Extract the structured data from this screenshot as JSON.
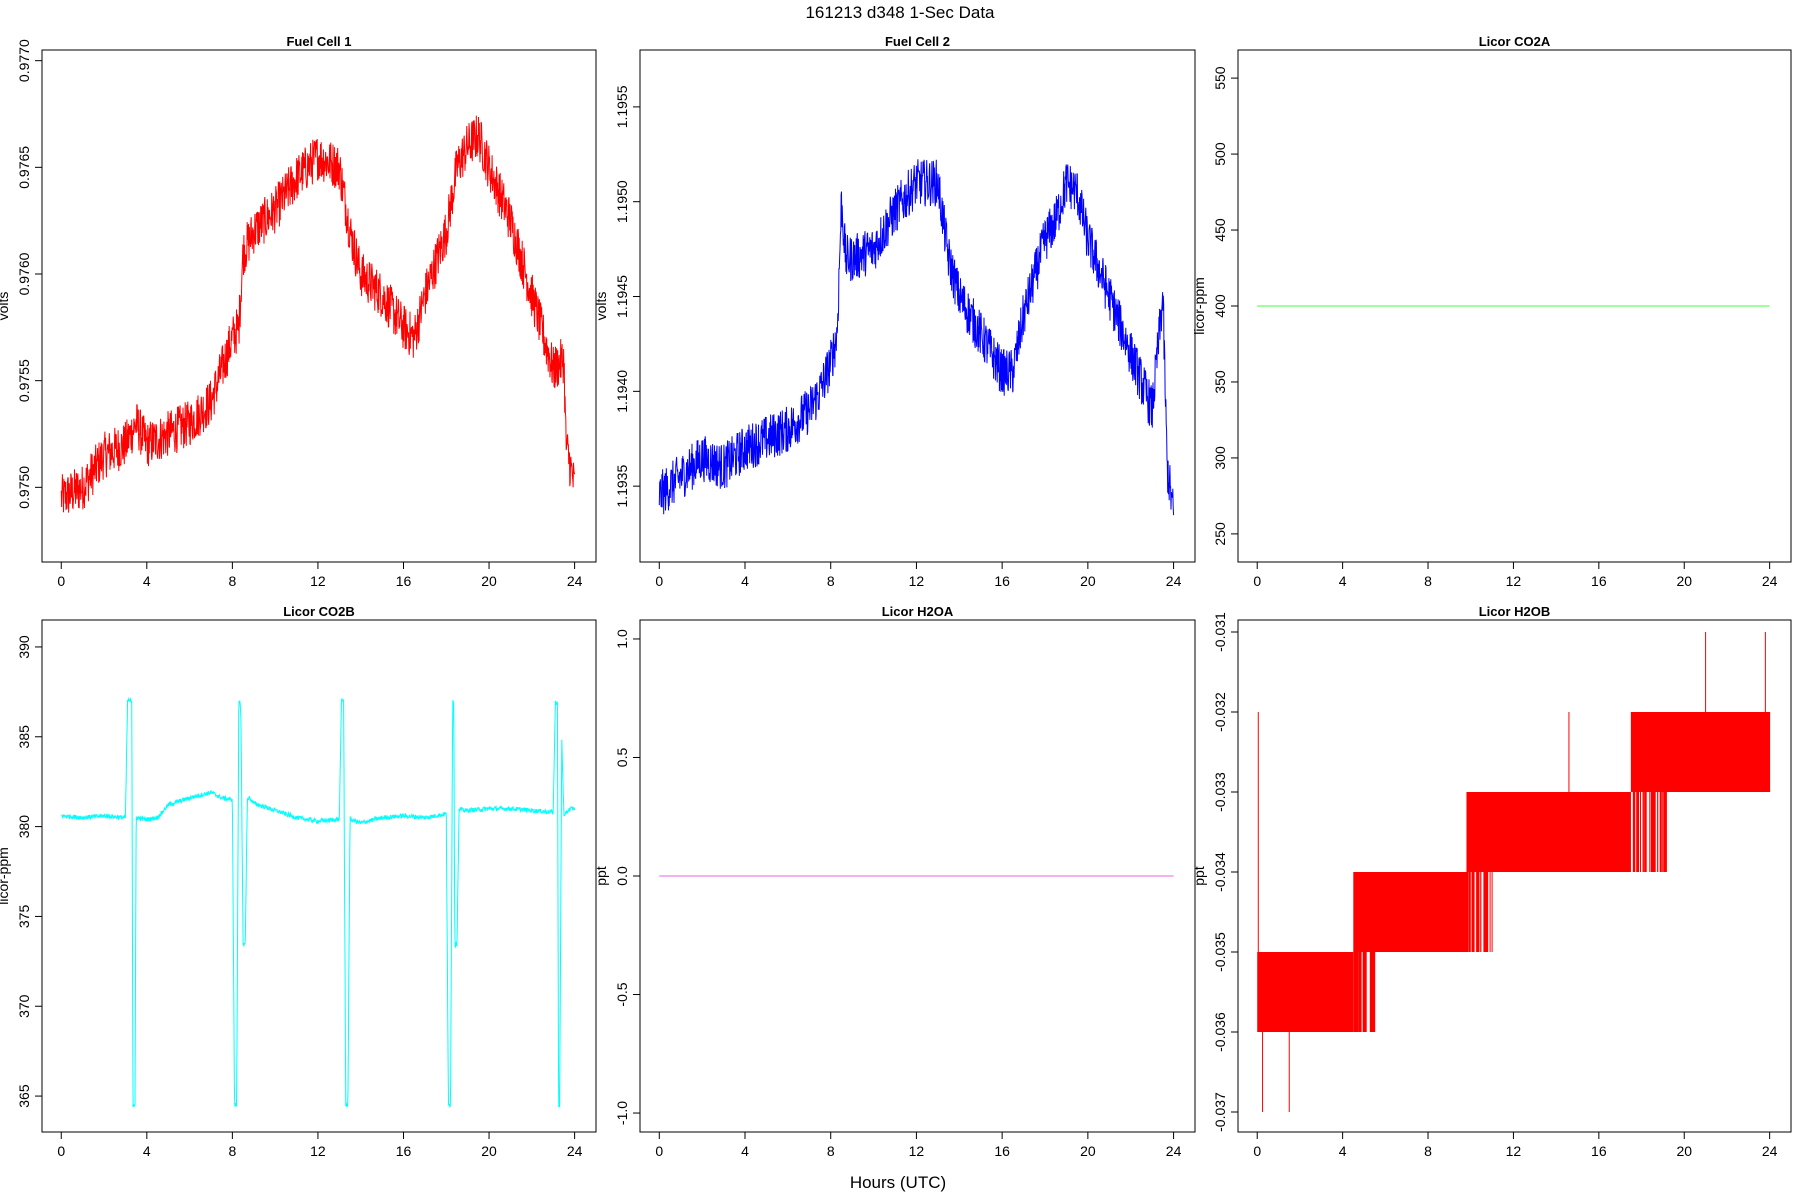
{
  "figure": {
    "title": "161213   d348   1-Sec Data",
    "xlabel": "Hours (UTC)"
  },
  "chart_data": [
    {
      "id": "fuel-cell-1",
      "type": "line",
      "title": "Fuel Cell 1",
      "ylabel": "volts",
      "color": "#ff0000",
      "xlim": [
        -0.9,
        25.0
      ],
      "ylim": [
        0.97465,
        0.97705
      ],
      "xticks": [
        0,
        4,
        8,
        12,
        16,
        20,
        24
      ],
      "yticks": [
        0.975,
        0.9755,
        0.976,
        0.9765,
        0.977
      ],
      "ytick_labels": [
        "0.9750",
        "0.9755",
        "0.9760",
        "0.9765",
        "0.9770"
      ],
      "noise": 0.00022,
      "series": [
        {
          "x": [
            0,
            1,
            2,
            3,
            3.5,
            4,
            5,
            6,
            7,
            7.5,
            8,
            8.3,
            8.5,
            9,
            10,
            11,
            12,
            13,
            13.5,
            14,
            15,
            16,
            16.5,
            17,
            18,
            18.5,
            19,
            19.5,
            20,
            21,
            22,
            23,
            23.5,
            23.6,
            24
          ],
          "y": [
            0.97495,
            0.975,
            0.97515,
            0.9752,
            0.9753,
            0.9752,
            0.97525,
            0.9753,
            0.9754,
            0.97555,
            0.9757,
            0.97575,
            0.9761,
            0.9762,
            0.9763,
            0.97645,
            0.97655,
            0.9765,
            0.9762,
            0.976,
            0.9759,
            0.97575,
            0.9757,
            0.9759,
            0.9762,
            0.9765,
            0.9766,
            0.97665,
            0.9765,
            0.97625,
            0.9759,
            0.97555,
            0.9756,
            0.9752,
            0.975
          ]
        }
      ]
    },
    {
      "id": "fuel-cell-2",
      "type": "line",
      "title": "Fuel Cell 2",
      "ylabel": "volts",
      "color": "#0000ff",
      "xlim": [
        -0.9,
        25.0
      ],
      "ylim": [
        1.1931,
        1.1958
      ],
      "xticks": [
        0,
        4,
        8,
        12,
        16,
        20,
        24
      ],
      "yticks": [
        1.1935,
        1.194,
        1.1945,
        1.195,
        1.1955
      ],
      "ytick_labels": [
        "1.1935",
        "1.1940",
        "1.1945",
        "1.1950",
        "1.1955"
      ],
      "noise": 0.00025,
      "series": [
        {
          "x": [
            0,
            1,
            2,
            3,
            3.5,
            4,
            5,
            6,
            7,
            7.5,
            8,
            8.3,
            8.5,
            8.7,
            9,
            10,
            11,
            12,
            13,
            13.5,
            14,
            15,
            16,
            16.5,
            17,
            18,
            18.5,
            19,
            19.5,
            20,
            21,
            22,
            23,
            23.5,
            23.7,
            24
          ],
          "y": [
            1.19345,
            1.19355,
            1.19365,
            1.1936,
            1.19365,
            1.1937,
            1.19375,
            1.1938,
            1.1939,
            1.194,
            1.19415,
            1.1943,
            1.195,
            1.1947,
            1.1947,
            1.19475,
            1.19495,
            1.1951,
            1.1951,
            1.1947,
            1.1945,
            1.1943,
            1.1941,
            1.1941,
            1.1944,
            1.1948,
            1.1949,
            1.1951,
            1.19505,
            1.1948,
            1.1945,
            1.1942,
            1.1939,
            1.1945,
            1.1936,
            1.19335
          ]
        }
      ]
    },
    {
      "id": "licor-co2a",
      "type": "line",
      "title": "Licor CO2A",
      "ylabel": "licor-ppm",
      "color": "#66ff66",
      "xlim": [
        -0.9,
        25.0
      ],
      "ylim": [
        231.5,
        568.5
      ],
      "xticks": [
        0,
        4,
        8,
        12,
        16,
        20,
        24
      ],
      "yticks": [
        250,
        300,
        350,
        400,
        450,
        500,
        550
      ],
      "ytick_labels": [
        "250",
        "300",
        "350",
        "400",
        "450",
        "500",
        "550"
      ],
      "noise": 0,
      "series": [
        {
          "x": [
            0,
            24
          ],
          "y": [
            400,
            400
          ]
        }
      ]
    },
    {
      "id": "licor-co2b",
      "type": "line",
      "title": "Licor CO2B",
      "ylabel": "licor-ppm",
      "color": "#00ffff",
      "xlim": [
        -0.9,
        25.0
      ],
      "ylim": [
        363.0,
        391.5
      ],
      "xticks": [
        0,
        4,
        8,
        12,
        16,
        20,
        24
      ],
      "yticks": [
        365,
        370,
        375,
        380,
        385,
        390
      ],
      "ytick_labels": [
        "365",
        "370",
        "375",
        "380",
        "385",
        "390"
      ],
      "noise": 0.25,
      "series": [
        {
          "x": [
            0,
            1,
            2,
            3,
            3.1,
            3.2,
            3.3,
            3.35,
            3.4,
            3.45,
            3.5,
            4,
            4.5,
            5,
            6,
            7,
            7.5,
            8,
            8.1,
            8.15,
            8.2,
            8.3,
            8.35,
            8.4,
            8.5,
            8.6,
            8.7,
            8.75,
            8.8,
            9,
            10,
            11,
            12,
            13,
            13.1,
            13.2,
            13.3,
            13.35,
            13.4,
            13.5,
            14,
            15,
            16,
            17,
            18,
            18.1,
            18.2,
            18.3,
            18.35,
            18.4,
            18.5,
            18.6,
            18.7,
            18.75,
            19,
            20,
            21,
            22,
            23,
            23.1,
            23.2,
            23.25,
            23.3,
            23.4,
            23.5,
            23.55,
            23.6,
            23.7,
            23.8,
            24
          ],
          "y": [
            380.6,
            380.5,
            380.6,
            380.5,
            387.0,
            387.0,
            387.0,
            364.5,
            364.5,
            364.5,
            380.5,
            380.4,
            380.5,
            381.2,
            381.6,
            381.9,
            381.6,
            381.5,
            364.5,
            364.5,
            364.5,
            387.0,
            387.0,
            386.0,
            373.5,
            373.4,
            381.5,
            381.6,
            381.6,
            381.3,
            380.9,
            380.5,
            380.3,
            380.4,
            387.0,
            387.0,
            364.5,
            364.5,
            364.5,
            380.4,
            380.2,
            380.5,
            380.6,
            380.5,
            380.7,
            364.5,
            364.5,
            387.0,
            387.0,
            373.4,
            373.5,
            380.9,
            381.0,
            380.9,
            380.9,
            381.0,
            381.0,
            380.9,
            380.8,
            386.9,
            386.9,
            364.4,
            364.4,
            384.9,
            380.6,
            380.5,
            380.8,
            380.9,
            381.0,
            381.0
          ]
        }
      ]
    },
    {
      "id": "licor-h2oa",
      "type": "line",
      "title": "Licor H2OA",
      "ylabel": "ppt",
      "color": "#ee82ee",
      "xlim": [
        -0.9,
        25.0
      ],
      "ylim": [
        -1.08,
        1.08
      ],
      "xticks": [
        0,
        4,
        8,
        12,
        16,
        20,
        24
      ],
      "yticks": [
        -1.0,
        -0.5,
        0.0,
        0.5,
        1.0
      ],
      "ytick_labels": [
        "-1.0",
        "-0.5",
        "0.0",
        "0.5",
        "1.0"
      ],
      "noise": 0,
      "series": [
        {
          "x": [
            0,
            24
          ],
          "y": [
            0,
            0
          ]
        }
      ]
    },
    {
      "id": "licor-h2ob",
      "type": "line",
      "title": "Licor H2OB",
      "ylabel": "ppt",
      "color": "#ff0000",
      "xlim": [
        -0.9,
        25.0
      ],
      "ylim": [
        -0.03725,
        -0.03085
      ],
      "xticks": [
        0,
        4,
        8,
        12,
        16,
        20,
        24
      ],
      "yticks": [
        -0.037,
        -0.036,
        -0.035,
        -0.034,
        -0.033,
        -0.032,
        -0.031
      ],
      "ytick_labels": [
        "-0.037",
        "-0.036",
        "-0.035",
        "-0.034",
        "-0.033",
        "-0.032",
        "-0.031"
      ],
      "noise": 0,
      "step_bands": [
        {
          "x": [
            0,
            4.5
          ],
          "low": -0.036,
          "high": -0.035
        },
        {
          "x": [
            4.5,
            9.8
          ],
          "low": -0.035,
          "high": -0.034
        },
        {
          "x": [
            9.8,
            17.5
          ],
          "low": -0.034,
          "high": -0.033
        },
        {
          "x": [
            17.5,
            24
          ],
          "low": -0.033,
          "high": -0.032
        }
      ],
      "spikes": [
        {
          "x": 0.05,
          "low": -0.035,
          "high": -0.032
        },
        {
          "x": 0.25,
          "low": -0.037,
          "high": -0.036
        },
        {
          "x": 1.5,
          "low": -0.037,
          "high": -0.036
        },
        {
          "x": 14.6,
          "low": -0.033,
          "high": -0.032
        },
        {
          "x": 21.0,
          "low": -0.032,
          "high": -0.031
        },
        {
          "x": 23.8,
          "low": -0.032,
          "high": -0.031
        }
      ]
    }
  ]
}
